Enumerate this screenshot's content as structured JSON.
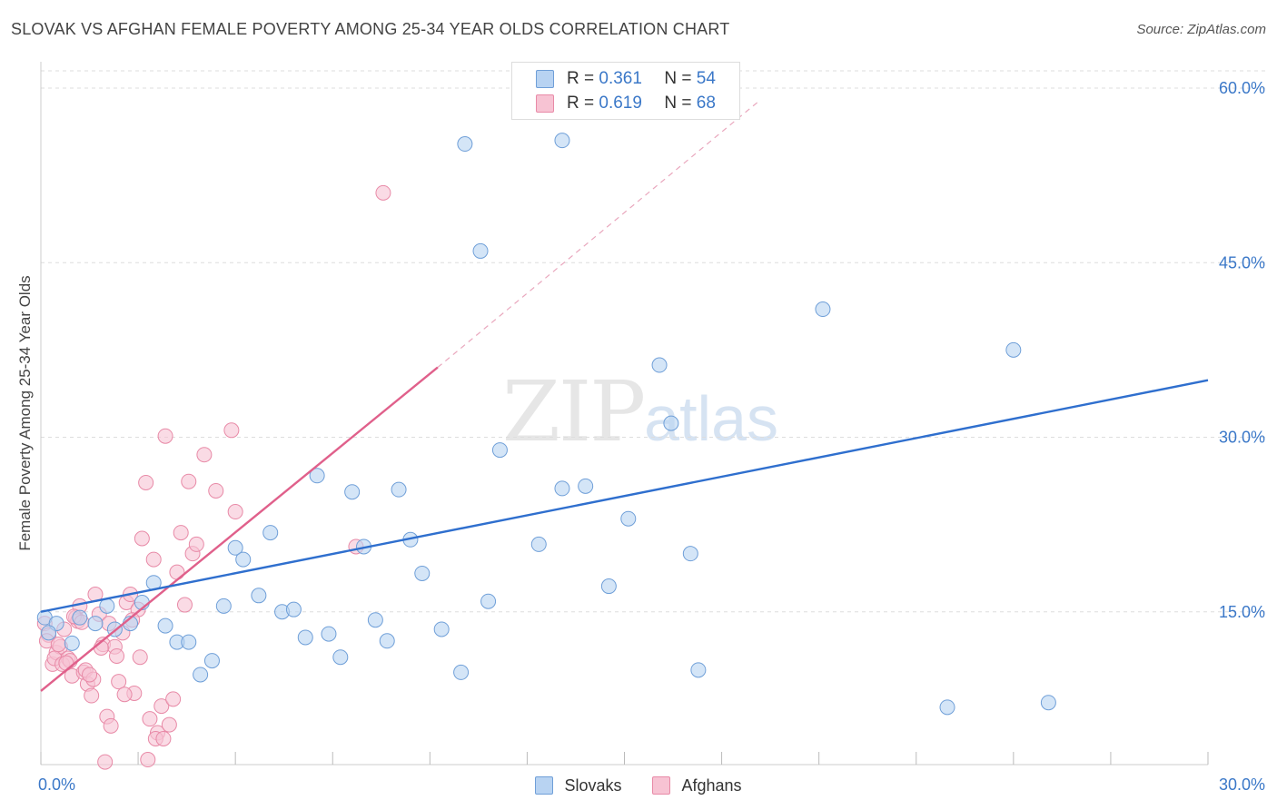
{
  "title": "SLOVAK VS AFGHAN FEMALE POVERTY AMONG 25-34 YEAR OLDS CORRELATION CHART",
  "source": "Source: ZipAtlas.com",
  "watermark": {
    "zip": "ZIP",
    "atlas": "atlas"
  },
  "legend": {
    "r_label": "R =",
    "n_label": "N =",
    "slovaks": {
      "r": "0.361",
      "n": "54"
    },
    "afghans": {
      "r": "0.619",
      "n": "68"
    }
  },
  "colors": {
    "slovaks_fill": "#b8d3f2",
    "slovaks_stroke": "#6f9fd8",
    "slovaks_line": "#2f6fce",
    "afghans_fill": "#f7c3d3",
    "afghans_stroke": "#e88aa7",
    "afghans_line": "#e0608b",
    "axis_text": "#3b78c8",
    "grid": "#dddddd"
  },
  "chart_data": {
    "type": "scatter",
    "title": "SLOVAK VS AFGHAN FEMALE POVERTY AMONG 25-34 YEAR OLDS CORRELATION CHART",
    "xlabel": "",
    "ylabel": "Female Poverty Among 25-34 Year Olds",
    "xlim": [
      0,
      30
    ],
    "ylim": [
      0,
      65
    ],
    "x_tick_labels": [
      "0.0%",
      "30.0%"
    ],
    "y_ticks": [
      15,
      30,
      45,
      60
    ],
    "y_tick_labels": [
      "15.0%",
      "30.0%",
      "45.0%",
      "60.0%"
    ],
    "grid": true,
    "legend_position": "top-center",
    "series": [
      {
        "name": "Slovaks",
        "points": [
          [
            0.1,
            14.5
          ],
          [
            0.4,
            14.0
          ],
          [
            0.8,
            12.3
          ],
          [
            1.0,
            14.5
          ],
          [
            1.4,
            14.0
          ],
          [
            1.7,
            15.5
          ],
          [
            1.9,
            13.5
          ],
          [
            2.3,
            14.0
          ],
          [
            2.6,
            15.8
          ],
          [
            2.9,
            17.5
          ],
          [
            3.2,
            13.8
          ],
          [
            3.5,
            12.4
          ],
          [
            3.8,
            12.4
          ],
          [
            4.1,
            9.6
          ],
          [
            4.4,
            10.8
          ],
          [
            4.7,
            15.5
          ],
          [
            5.0,
            20.5
          ],
          [
            5.2,
            19.5
          ],
          [
            5.6,
            16.4
          ],
          [
            5.9,
            21.8
          ],
          [
            6.2,
            15.0
          ],
          [
            6.5,
            15.2
          ],
          [
            6.8,
            12.8
          ],
          [
            7.1,
            26.7
          ],
          [
            7.4,
            13.1
          ],
          [
            7.7,
            11.1
          ],
          [
            8.0,
            25.3
          ],
          [
            8.3,
            20.6
          ],
          [
            8.6,
            14.3
          ],
          [
            8.9,
            12.5
          ],
          [
            9.2,
            25.5
          ],
          [
            9.5,
            21.2
          ],
          [
            9.8,
            18.3
          ],
          [
            10.3,
            13.5
          ],
          [
            10.8,
            9.8
          ],
          [
            10.9,
            55.2
          ],
          [
            11.3,
            46.0
          ],
          [
            11.5,
            15.9
          ],
          [
            11.8,
            28.9
          ],
          [
            12.8,
            20.8
          ],
          [
            13.4,
            55.5
          ],
          [
            13.4,
            25.6
          ],
          [
            14.0,
            25.8
          ],
          [
            14.6,
            17.2
          ],
          [
            15.1,
            23.0
          ],
          [
            15.9,
            36.2
          ],
          [
            16.2,
            31.2
          ],
          [
            16.7,
            20.0
          ],
          [
            16.9,
            10.0
          ],
          [
            20.1,
            41.0
          ],
          [
            23.3,
            6.8
          ],
          [
            25.0,
            37.5
          ],
          [
            25.9,
            7.2
          ],
          [
            0.2,
            13.2
          ]
        ]
      },
      {
        "name": "Afghans",
        "points": [
          [
            0.1,
            14.0
          ],
          [
            0.2,
            13.0
          ],
          [
            0.3,
            10.5
          ],
          [
            0.4,
            11.5
          ],
          [
            0.5,
            12.0
          ],
          [
            0.6,
            13.5
          ],
          [
            0.7,
            11.0
          ],
          [
            0.8,
            9.5
          ],
          [
            0.9,
            14.5
          ],
          [
            1.0,
            15.5
          ],
          [
            1.1,
            9.8
          ],
          [
            1.2,
            8.8
          ],
          [
            1.3,
            7.8
          ],
          [
            1.4,
            16.5
          ],
          [
            1.5,
            14.8
          ],
          [
            1.6,
            12.2
          ],
          [
            1.7,
            6.0
          ],
          [
            1.8,
            5.2
          ],
          [
            1.9,
            12.0
          ],
          [
            2.0,
            9.0
          ],
          [
            2.1,
            13.2
          ],
          [
            2.2,
            15.8
          ],
          [
            2.3,
            16.5
          ],
          [
            2.4,
            8.0
          ],
          [
            2.5,
            15.2
          ],
          [
            2.6,
            21.3
          ],
          [
            2.7,
            26.1
          ],
          [
            2.8,
            5.8
          ],
          [
            2.9,
            19.5
          ],
          [
            3.0,
            4.6
          ],
          [
            3.1,
            6.9
          ],
          [
            3.2,
            30.1
          ],
          [
            3.3,
            5.3
          ],
          [
            3.4,
            7.5
          ],
          [
            3.5,
            18.4
          ],
          [
            3.6,
            21.8
          ],
          [
            3.7,
            15.6
          ],
          [
            3.8,
            26.2
          ],
          [
            3.9,
            20.0
          ],
          [
            4.0,
            20.8
          ],
          [
            4.2,
            28.5
          ],
          [
            4.5,
            25.4
          ],
          [
            4.9,
            30.6
          ],
          [
            5.0,
            23.6
          ],
          [
            8.1,
            20.6
          ],
          [
            8.8,
            51.0
          ],
          [
            0.15,
            12.5
          ],
          [
            0.35,
            11.0
          ],
          [
            0.55,
            10.5
          ],
          [
            0.75,
            10.8
          ],
          [
            0.95,
            14.2
          ],
          [
            1.15,
            10.0
          ],
          [
            1.35,
            9.2
          ],
          [
            1.55,
            11.9
          ],
          [
            1.75,
            14.0
          ],
          [
            1.95,
            11.2
          ],
          [
            2.15,
            7.9
          ],
          [
            2.35,
            14.3
          ],
          [
            2.55,
            11.1
          ],
          [
            2.75,
            2.3
          ],
          [
            2.95,
            4.1
          ],
          [
            3.15,
            4.1
          ],
          [
            0.45,
            12.2
          ],
          [
            0.65,
            10.6
          ],
          [
            0.85,
            14.6
          ],
          [
            1.05,
            14.1
          ],
          [
            1.25,
            9.6
          ],
          [
            1.65,
            2.1
          ]
        ]
      }
    ],
    "trend_lines": [
      {
        "series": "Slovaks",
        "from": [
          0,
          15.0
        ],
        "to": [
          30,
          34.9
        ]
      },
      {
        "series": "Afghans",
        "from": [
          0,
          8.2
        ],
        "to": [
          10.2,
          36.0
        ],
        "dashed_extension_to": [
          18.5,
          59.0
        ]
      }
    ]
  }
}
